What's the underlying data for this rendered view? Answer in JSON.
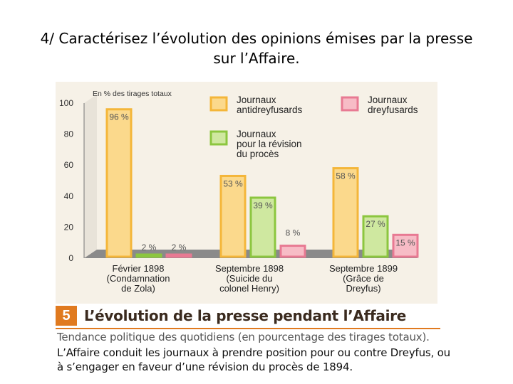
{
  "question": "4/ Caractérisez l’évolution des opinions émises par la presse sur l’Affaire.",
  "document": {
    "number": "5",
    "title": "L’évolution de la presse pendant l’Affaire",
    "subtitle": "Tendance politique des quotidiens (en pourcentage des tirages totaux).",
    "text": "L’Affaire conduit les journaux à prendre position pour ou contre Dreyfus, ou à s’engager en faveur d’une révision du procès de 1894."
  },
  "colors": {
    "antidreyfusards_fill": "#fbd98c",
    "antidreyfusards_border": "#f4b63a",
    "revision_fill": "#cfe8a0",
    "revision_border": "#8cc63f",
    "dreyfusards_fill": "#f7bcc6",
    "dreyfusards_border": "#e87a93",
    "figure_background": "#f6f1e7",
    "floor": "#8a8a8a"
  },
  "chart_data": {
    "type": "bar",
    "ylabel": "En % des tirages totaux",
    "ylim": [
      0,
      100
    ],
    "yticks": [
      "0",
      "20",
      "40",
      "60",
      "80",
      "100"
    ],
    "categories": [
      [
        "Février 1898",
        "(Condamnation",
        "de Zola)"
      ],
      [
        "Septembre 1898",
        "(Suicide du",
        "colonel Henry)"
      ],
      [
        "Septembre 1899",
        "(Grâce de",
        "Dreyfus)"
      ]
    ],
    "series": [
      {
        "name": "Journaux antidreyfusards",
        "legend": [
          "Journaux",
          "antidreyfusards"
        ],
        "values": [
          96,
          53,
          58
        ],
        "labels": [
          "96 %",
          "53 %",
          "58 %"
        ]
      },
      {
        "name": "Journaux pour la révision du procès",
        "legend": [
          "Journaux",
          "pour la révision",
          "du procès"
        ],
        "values": [
          2,
          39,
          27
        ],
        "labels": [
          "2 %",
          "39 %",
          "27 %"
        ]
      },
      {
        "name": "Journaux dreyfusards",
        "legend": [
          "Journaux",
          "dreyfusards"
        ],
        "values": [
          2,
          8,
          15
        ],
        "labels": [
          "2 %",
          "8 %",
          "15 %"
        ]
      }
    ],
    "grid": false,
    "legend_position": "top-right"
  }
}
